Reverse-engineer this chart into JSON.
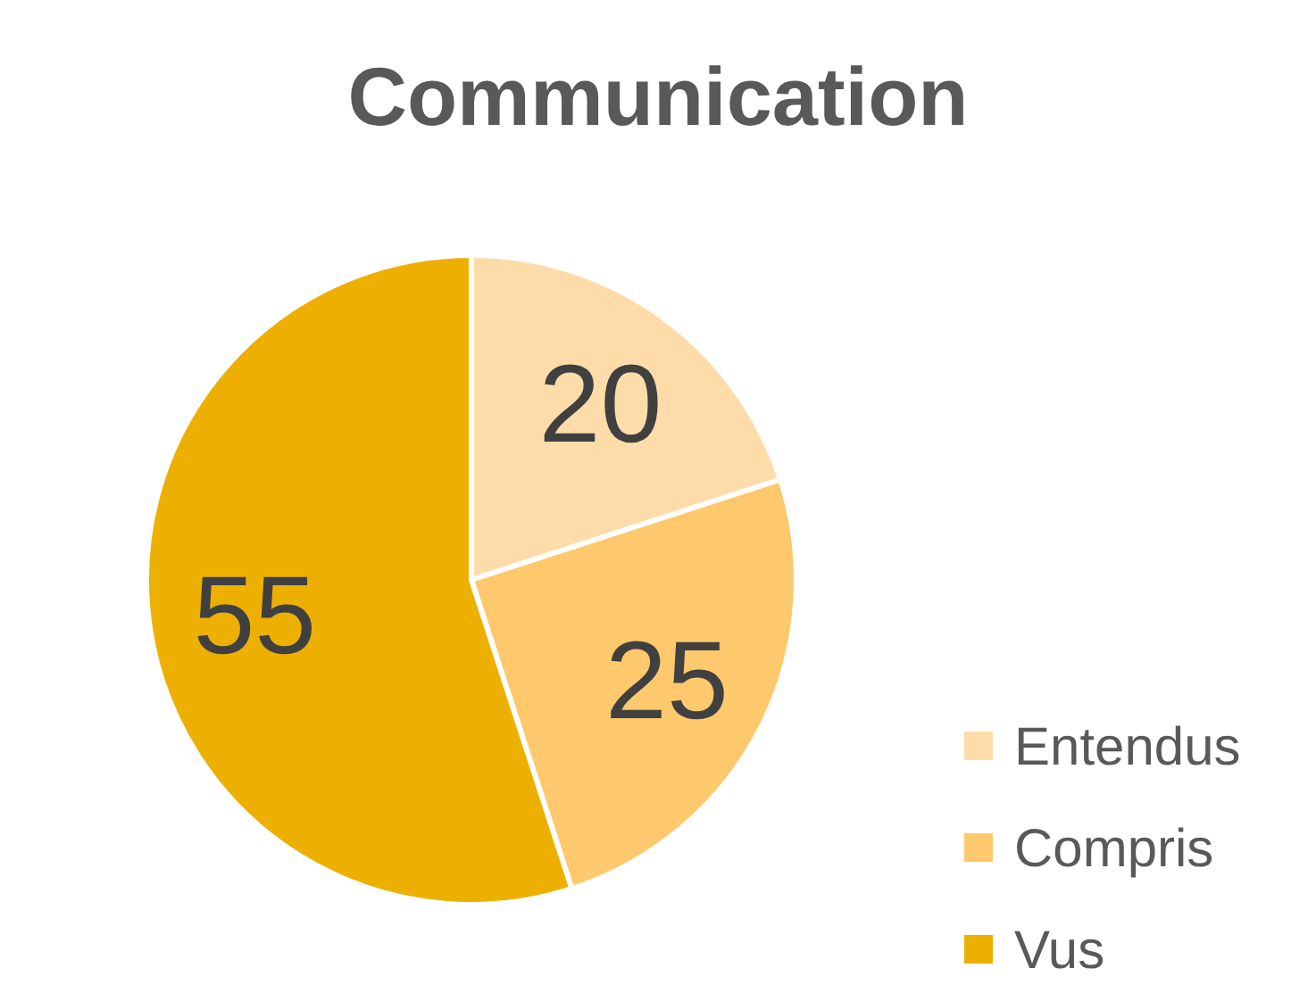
{
  "chart_data": {
    "type": "pie",
    "title": "Communication",
    "categories": [
      "Entendus",
      "Compris",
      "Vus"
    ],
    "values": [
      20,
      25,
      55
    ],
    "colors": [
      "#fedcaa",
      "#fec96c",
      "#edb000"
    ],
    "data_labels": true,
    "legend": "bottom right"
  }
}
